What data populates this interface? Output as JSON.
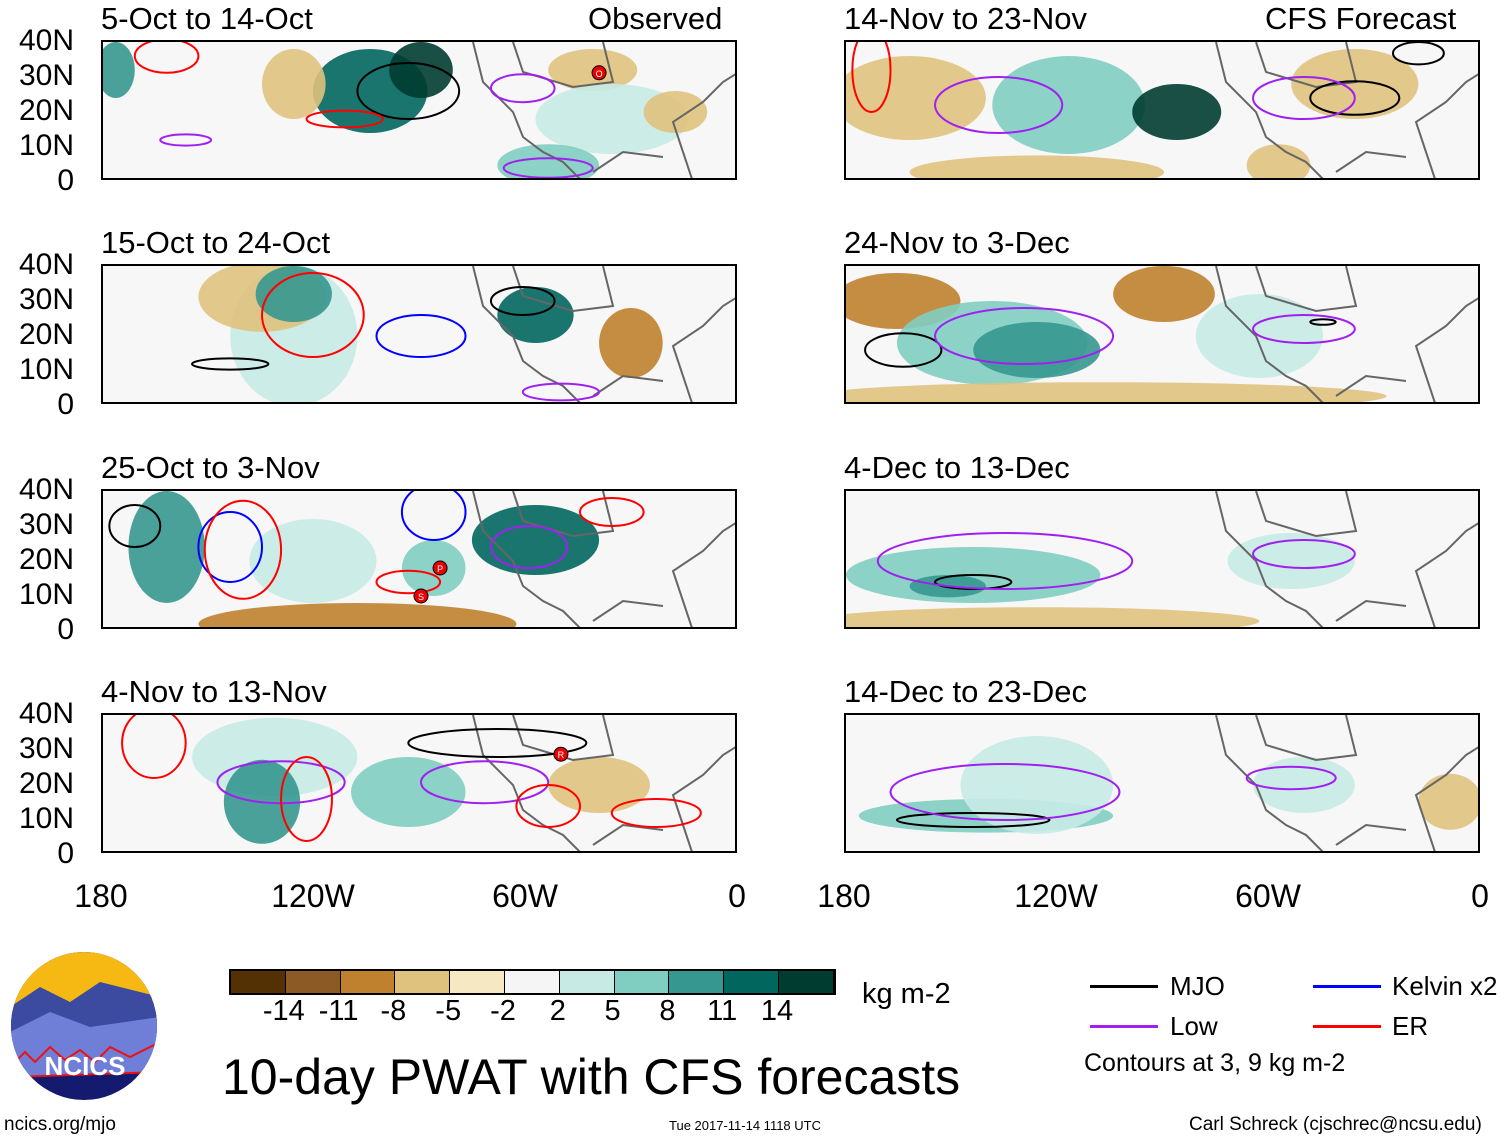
{
  "header": {
    "left_label": "Observed",
    "right_label": "CFS Forecast"
  },
  "panels_left": [
    "5-Oct to 14-Oct",
    "15-Oct to 24-Oct",
    "25-Oct to 3-Nov",
    "4-Nov to 13-Nov"
  ],
  "panels_right": [
    "14-Nov to 23-Nov",
    "24-Nov to 3-Dec",
    "4-Dec to 13-Dec",
    "14-Dec to 23-Dec"
  ],
  "lat_labels": [
    "40N",
    "30N",
    "20N",
    "10N",
    "0"
  ],
  "lon_labels": [
    "180",
    "120W",
    "60W",
    "0"
  ],
  "storm_markers": [
    "O",
    "P",
    "S",
    "R"
  ],
  "chart_data": {
    "type": "heatmap",
    "title": "10-day PWAT with CFS forecasts",
    "variable": "PWAT anomaly",
    "units": "kg m-2",
    "colorbar": {
      "ticks": [
        "-14",
        "-11",
        "-8",
        "-5",
        "-2",
        "2",
        "5",
        "8",
        "11",
        "14"
      ],
      "colors": [
        "#543005",
        "#8c5a24",
        "#bf812d",
        "#dfc27d",
        "#f6e8c3",
        "#f5f5f5",
        "#c7eae5",
        "#80cdc1",
        "#35978f",
        "#01665e",
        "#003c30"
      ]
    },
    "xlim": [
      "180",
      "0"
    ],
    "ylim": [
      "0",
      "40N"
    ],
    "contour_legend": [
      {
        "name": "MJO",
        "color": "#000000"
      },
      {
        "name": "Kelvin x2",
        "color": "#0000ff"
      },
      {
        "name": "Low",
        "color": "#a020f0"
      },
      {
        "name": "ER",
        "color": "#ff0000"
      }
    ],
    "contour_note": "Contours at 3, 9 kg m-2"
  },
  "footer": {
    "url": "ncics.org/mjo",
    "timestamp": "Tue 2017-11-14 1118 UTC",
    "author": "Carl Schreck (cjschrec@ncsu.edu)",
    "logo_text": "NCICS"
  }
}
